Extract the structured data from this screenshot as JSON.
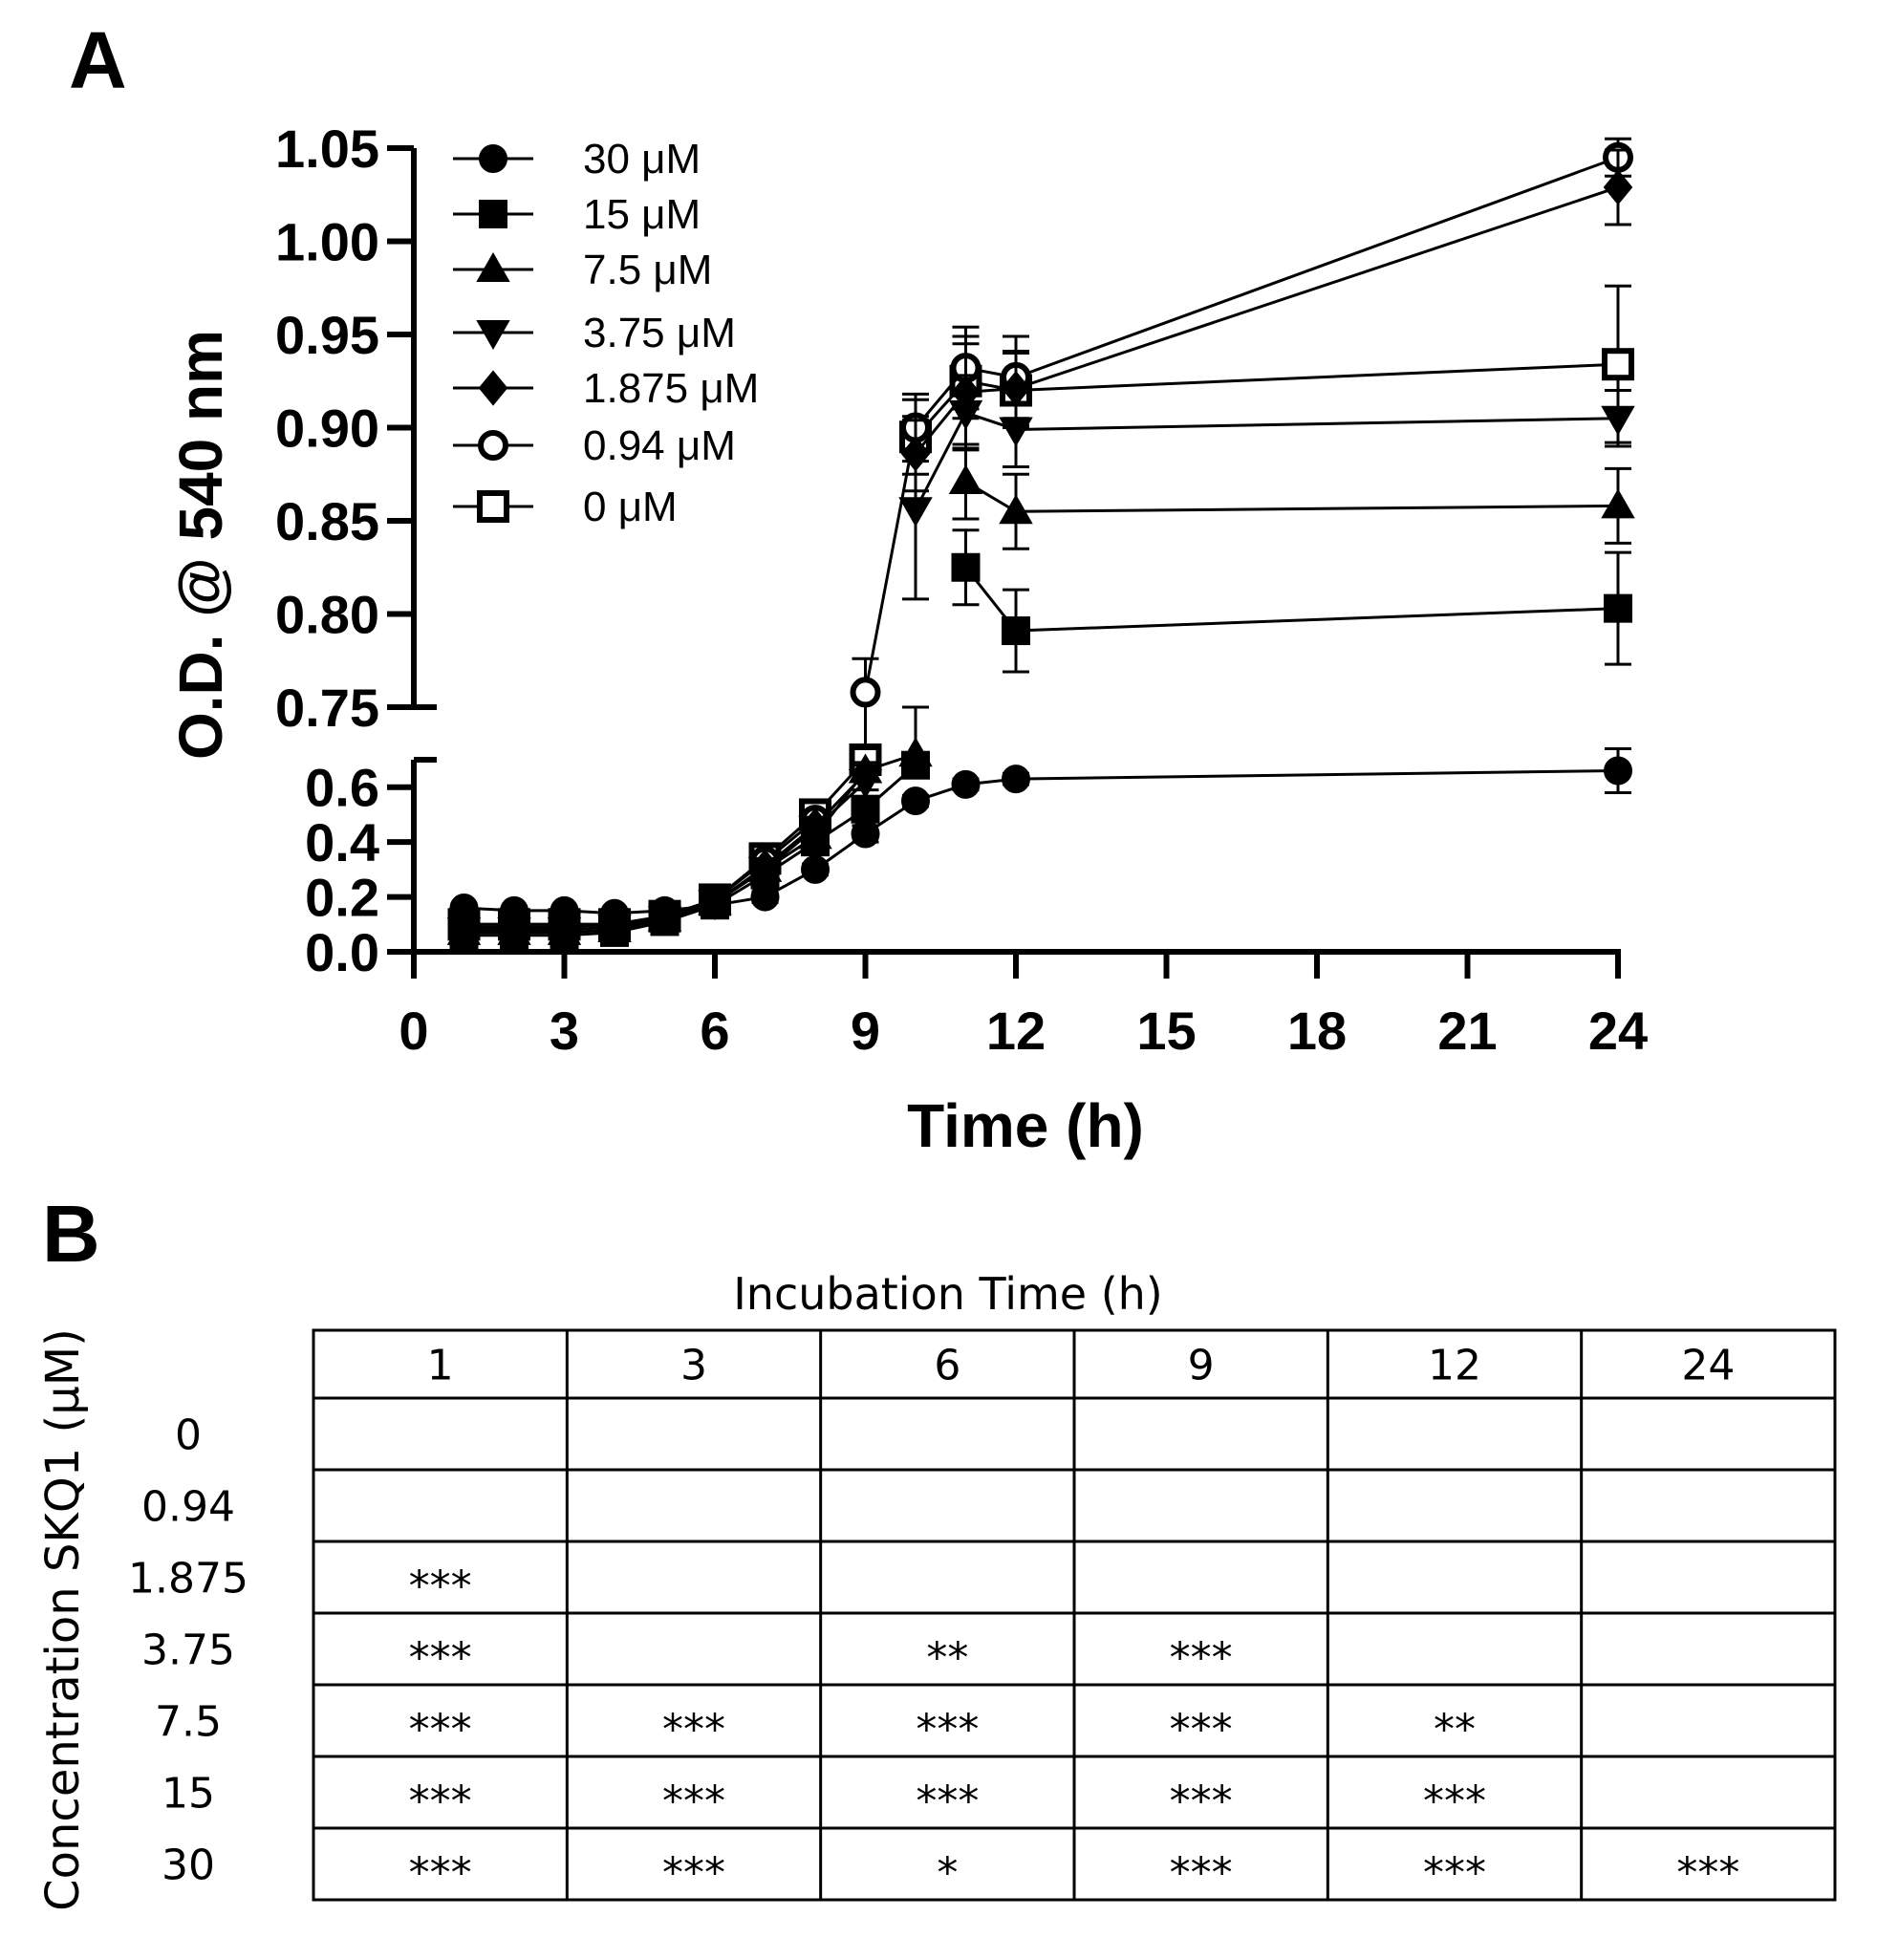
{
  "panel_a_label": "A",
  "panel_b_label": "B",
  "chart_data": {
    "type": "line",
    "title": "",
    "xlabel": "Time (h)",
    "ylabel": "O.D. @ 540 nm",
    "x_ticks": [
      "0",
      "3",
      "6",
      "9",
      "12",
      "15",
      "18",
      "21",
      "24"
    ],
    "xlim": [
      0,
      24
    ],
    "y_upper_segment": {
      "ylim": [
        0.75,
        1.05
      ],
      "ticks": [
        "1.05",
        "1.00",
        "0.95",
        "0.90",
        "0.85",
        "0.80",
        "0.75"
      ]
    },
    "y_lower_segment": {
      "ylim": [
        0.0,
        0.7
      ],
      "ticks": [
        "0.6",
        "0.4",
        "0.2",
        "0.0"
      ]
    },
    "x": [
      1,
      2,
      3,
      4,
      5,
      6,
      7,
      8,
      9,
      10,
      11,
      12,
      24
    ],
    "series": [
      {
        "name": "30 μM",
        "marker": "filled-circle",
        "values": [
          0.16,
          0.15,
          0.15,
          0.14,
          0.15,
          0.17,
          0.2,
          0.3,
          0.43,
          0.55,
          0.61,
          0.63,
          0.66
        ],
        "errors": [
          0.01,
          0.01,
          0.01,
          0.01,
          0.01,
          0.01,
          0.02,
          0.02,
          0.03,
          0.02,
          0.02,
          0.02,
          0.08
        ]
      },
      {
        "name": "15 μM",
        "marker": "filled-square",
        "values": [
          0.06,
          0.06,
          0.06,
          0.07,
          0.11,
          0.17,
          0.28,
          0.4,
          0.52,
          0.68,
          0.825,
          0.791,
          0.803
        ],
        "errors": [
          0.01,
          0.01,
          0.01,
          0.01,
          0.01,
          0.01,
          0.02,
          0.02,
          0.03,
          0.03,
          0.02,
          0.022,
          0.03
        ]
      },
      {
        "name": "7.5  μM",
        "marker": "filled-triangle-up",
        "values": [
          0.07,
          0.07,
          0.07,
          0.08,
          0.12,
          0.18,
          0.3,
          0.42,
          0.66,
          0.72,
          0.871,
          0.855,
          0.858
        ],
        "errors": [
          0.01,
          0.01,
          0.01,
          0.01,
          0.01,
          0.01,
          0.02,
          0.02,
          0.03,
          0.03,
          0.02,
          0.02,
          0.02
        ]
      },
      {
        "name": "3.75  μM",
        "marker": "filled-triangle-down",
        "values": [
          0.08,
          0.08,
          0.08,
          0.09,
          0.12,
          0.18,
          0.3,
          0.45,
          0.62,
          0.856,
          0.908,
          0.899,
          0.905
        ],
        "errors": [
          0.01,
          0.01,
          0.01,
          0.01,
          0.01,
          0.01,
          0.02,
          0.02,
          0.03,
          0.048,
          0.02,
          0.02,
          0.015
        ]
      },
      {
        "name": "1.875  μM",
        "marker": "filled-diamond",
        "values": [
          0.09,
          0.09,
          0.09,
          0.1,
          0.13,
          0.18,
          0.31,
          0.46,
          0.65,
          0.886,
          0.919,
          0.921,
          1.029
        ],
        "errors": [
          0.01,
          0.01,
          0.01,
          0.01,
          0.01,
          0.01,
          0.02,
          0.02,
          0.03,
          0.02,
          0.03,
          0.02,
          0.02
        ]
      },
      {
        "name": "0.94  μM",
        "marker": "open-circle",
        "values": [
          0.1,
          0.1,
          0.1,
          0.1,
          0.13,
          0.19,
          0.33,
          0.48,
          0.758,
          0.9,
          0.932,
          0.927,
          1.045
        ],
        "errors": [
          0.01,
          0.01,
          0.01,
          0.01,
          0.01,
          0.01,
          0.02,
          0.02,
          0.018,
          0.018,
          0.022,
          0.022,
          0.01
        ]
      },
      {
        "name": "0  μM",
        "marker": "open-square",
        "values": [
          0.1,
          0.1,
          0.1,
          0.1,
          0.13,
          0.19,
          0.34,
          0.5,
          0.7,
          0.895,
          0.925,
          0.92,
          0.934
        ],
        "errors": [
          0.01,
          0.01,
          0.01,
          0.01,
          0.01,
          0.01,
          0.02,
          0.02,
          0.03,
          0.02,
          0.02,
          0.02,
          0.042
        ]
      }
    ]
  },
  "table": {
    "title": "Incubation Time (h)",
    "row_axis_label": "Concentration SKQ1 (μM)",
    "columns": [
      "1",
      "3",
      "6",
      "9",
      "12",
      "24"
    ],
    "rows": [
      {
        "label": "0",
        "cells": [
          "",
          "",
          "",
          "",
          "",
          ""
        ]
      },
      {
        "label": "0.94",
        "cells": [
          "",
          "",
          "",
          "",
          "",
          ""
        ]
      },
      {
        "label": "1.875",
        "cells": [
          "***",
          "",
          "",
          "",
          "",
          ""
        ]
      },
      {
        "label": "3.75",
        "cells": [
          "***",
          "",
          "**",
          "***",
          "",
          ""
        ]
      },
      {
        "label": "7.5",
        "cells": [
          "***",
          "***",
          "***",
          "***",
          "**",
          ""
        ]
      },
      {
        "label": "15",
        "cells": [
          "***",
          "***",
          "***",
          "***",
          "***",
          ""
        ]
      },
      {
        "label": "30",
        "cells": [
          "***",
          "***",
          "*",
          "***",
          "***",
          "***"
        ]
      }
    ]
  }
}
